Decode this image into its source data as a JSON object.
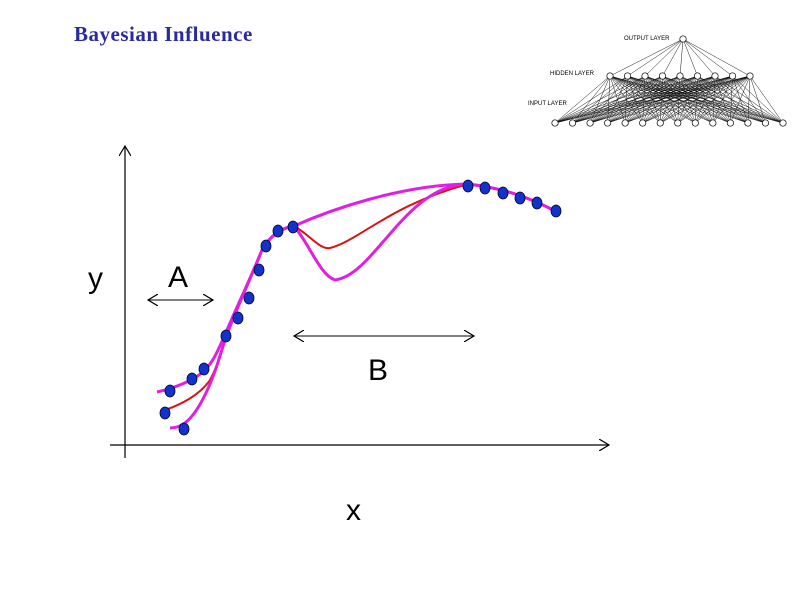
{
  "title": "Bayesian Influence",
  "labels": {
    "y": "y",
    "x": "x",
    "region_a": "A",
    "region_b": "B"
  },
  "network": {
    "output_layer": "OUTPUT LAYER",
    "hidden_layer": "HIDDEN LAYER",
    "input_layer": "INPUT LAYER",
    "hidden_nodes": 9,
    "input_nodes": 14
  },
  "colors": {
    "title": "#2a2aa0",
    "center_curve": "#dd1111",
    "envelope_curves": "#e020e0",
    "data_points": "#1133cc"
  }
}
